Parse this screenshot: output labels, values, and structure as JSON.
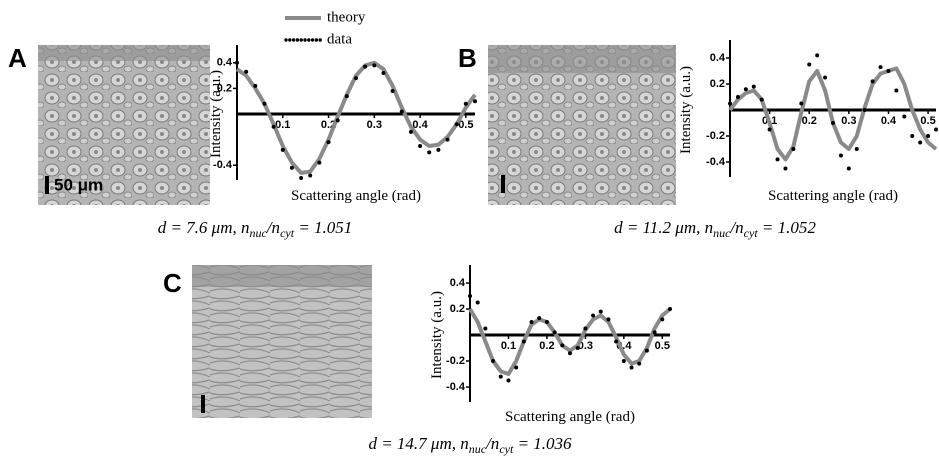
{
  "chart_data": [
    {
      "type": "line",
      "panel": "A",
      "ylabel": "Intensity (a.u.)",
      "xlabel": "Scattering angle (rad)",
      "caption": [
        "d = 7.6 μm, n",
        "nuc",
        "/n",
        "cyt",
        " = 1.051"
      ],
      "scale_bar_label": "50 μm",
      "legend": true,
      "xlim": [
        0,
        0.52
      ],
      "ylim": [
        -0.5,
        0.5
      ],
      "xticks": [
        0.1,
        0.2,
        0.3,
        0.4,
        0.5
      ],
      "yticks": [
        0.4,
        0.2,
        -0.4
      ],
      "x": [
        0,
        0.02,
        0.04,
        0.06,
        0.08,
        0.1,
        0.12,
        0.14,
        0.16,
        0.18,
        0.2,
        0.22,
        0.24,
        0.26,
        0.28,
        0.3,
        0.32,
        0.34,
        0.36,
        0.38,
        0.4,
        0.42,
        0.44,
        0.46,
        0.48,
        0.5,
        0.52
      ],
      "series": [
        {
          "name": "theory",
          "style": "line",
          "color": "#8a8a8a",
          "values": [
            0.35,
            0.3,
            0.2,
            0.08,
            -0.08,
            -0.25,
            -0.38,
            -0.46,
            -0.45,
            -0.35,
            -0.2,
            -0.02,
            0.15,
            0.3,
            0.38,
            0.4,
            0.35,
            0.22,
            0.05,
            -0.1,
            -0.2,
            -0.25,
            -0.24,
            -0.18,
            -0.08,
            0.05,
            0.15
          ]
        },
        {
          "name": "data",
          "style": "dots",
          "color": "#000000",
          "values": [
            0.4,
            0.33,
            0.22,
            0.08,
            -0.1,
            -0.28,
            -0.42,
            -0.5,
            -0.48,
            -0.38,
            -0.22,
            -0.05,
            0.14,
            0.28,
            0.37,
            0.38,
            0.32,
            0.18,
            0.02,
            -0.14,
            -0.25,
            -0.3,
            -0.28,
            -0.2,
            -0.08,
            0.08,
            0.1
          ]
        }
      ]
    },
    {
      "type": "line",
      "panel": "B",
      "ylabel": "Intensity (a.u.)",
      "xlabel": "Scattering angle (rad)",
      "caption": [
        "d = 11.2 μm, n",
        "nuc",
        "/n",
        "cyt",
        " = 1.052"
      ],
      "xlim": [
        0,
        0.52
      ],
      "ylim": [
        -0.5,
        0.5
      ],
      "xticks": [
        0.1,
        0.2,
        0.3,
        0.4,
        0.5
      ],
      "yticks": [
        0.4,
        0.2,
        -0.2,
        -0.4
      ],
      "x": [
        0,
        0.02,
        0.04,
        0.06,
        0.08,
        0.1,
        0.12,
        0.14,
        0.16,
        0.18,
        0.2,
        0.22,
        0.24,
        0.26,
        0.28,
        0.3,
        0.32,
        0.34,
        0.36,
        0.38,
        0.4,
        0.42,
        0.44,
        0.46,
        0.48,
        0.5,
        0.52
      ],
      "series": [
        {
          "style": "line",
          "color": "#8a8a8a",
          "values": [
            0,
            0.08,
            0.13,
            0.15,
            0.08,
            -0.1,
            -0.3,
            -0.38,
            -0.28,
            -0.02,
            0.22,
            0.3,
            0.15,
            -0.1,
            -0.25,
            -0.3,
            -0.2,
            0.02,
            0.2,
            0.28,
            0.3,
            0.32,
            0.2,
            0,
            -0.15,
            -0.25,
            -0.3
          ]
        },
        {
          "style": "dots",
          "color": "#000000",
          "values": [
            0.05,
            0.1,
            0.16,
            0.18,
            0.08,
            -0.15,
            -0.38,
            -0.45,
            -0.3,
            0.05,
            0.35,
            0.42,
            0.25,
            -0.1,
            -0.35,
            -0.45,
            -0.3,
            0,
            0.22,
            0.33,
            0.3,
            0.15,
            -0.05,
            -0.2,
            -0.25,
            -0.2,
            -0.15
          ]
        }
      ]
    },
    {
      "type": "line",
      "panel": "C",
      "ylabel": "Intensity (a.u.)",
      "xlabel": "Scattering angle (rad)",
      "caption": [
        "d = 14.7 μm, n",
        "nuc",
        "/n",
        "cyt",
        " = 1.036"
      ],
      "xlim": [
        0,
        0.52
      ],
      "ylim": [
        -0.5,
        0.5
      ],
      "xticks": [
        0.1,
        0.2,
        0.3,
        0.4,
        0.5
      ],
      "yticks": [
        0.4,
        0.2,
        -0.2,
        -0.4
      ],
      "x": [
        0,
        0.02,
        0.04,
        0.06,
        0.08,
        0.1,
        0.12,
        0.14,
        0.16,
        0.18,
        0.2,
        0.22,
        0.24,
        0.26,
        0.28,
        0.3,
        0.32,
        0.34,
        0.36,
        0.38,
        0.4,
        0.42,
        0.44,
        0.46,
        0.48,
        0.5,
        0.52
      ],
      "series": [
        {
          "style": "line",
          "color": "#8a8a8a",
          "values": [
            0.2,
            0.1,
            -0.05,
            -0.2,
            -0.28,
            -0.3,
            -0.2,
            -0.05,
            0.08,
            0.12,
            0.1,
            0.02,
            -0.08,
            -0.12,
            -0.08,
            0.04,
            0.12,
            0.15,
            0.1,
            -0.02,
            -0.15,
            -0.22,
            -0.2,
            -0.1,
            0.05,
            0.15,
            0.2
          ]
        },
        {
          "style": "dots",
          "color": "#000000",
          "values": [
            0.3,
            0.25,
            0.05,
            -0.2,
            -0.32,
            -0.35,
            -0.25,
            -0.05,
            0.1,
            0.13,
            0.1,
            0.02,
            -0.08,
            -0.14,
            -0.1,
            0.05,
            0.15,
            0.18,
            0.12,
            -0.05,
            -0.2,
            -0.25,
            -0.22,
            -0.12,
            0.02,
            0.12,
            0.2
          ]
        }
      ]
    }
  ]
}
